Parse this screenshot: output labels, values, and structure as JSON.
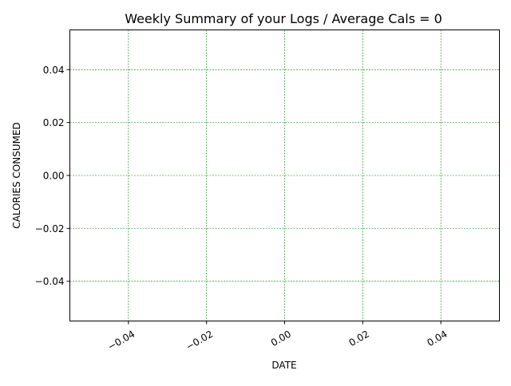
{
  "chart_data": {
    "type": "line",
    "title": "Weekly Summary of your Logs / Average Cals = 0",
    "xlabel": "DATE",
    "ylabel": "CALORIES CONSUMED",
    "xlim": [
      -0.055,
      0.055
    ],
    "ylim": [
      -0.055,
      0.055
    ],
    "xticks": [
      -0.04,
      -0.02,
      0.0,
      0.02,
      0.04
    ],
    "xtick_labels": [
      "−0.04",
      "−0.02",
      "0.00",
      "0.02",
      "0.04"
    ],
    "yticks": [
      0.04,
      0.02,
      0.0,
      -0.02,
      -0.04
    ],
    "ytick_labels": [
      "0.04",
      "0.02",
      "0.00",
      "−0.02",
      "−0.04"
    ],
    "x": [],
    "series": [
      {
        "values": []
      }
    ],
    "grid": true,
    "grid_color": "#008000",
    "grid_style": "dashed",
    "xtick_rotation": "30"
  }
}
